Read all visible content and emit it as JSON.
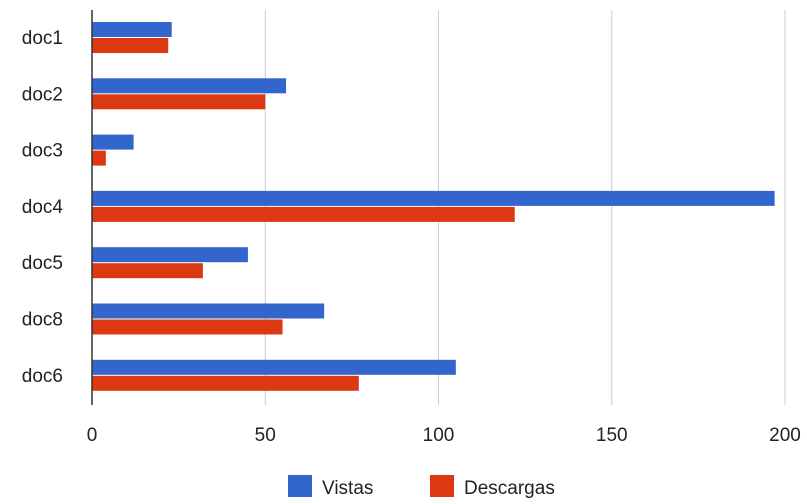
{
  "chart_data": {
    "type": "bar",
    "orientation": "horizontal",
    "categories": [
      "doc1",
      "doc2",
      "doc3",
      "doc4",
      "doc5",
      "doc8",
      "doc6"
    ],
    "series": [
      {
        "name": "Vistas",
        "color": "#3366cc",
        "values": [
          23,
          56,
          12,
          197,
          45,
          67,
          105
        ]
      },
      {
        "name": "Descargas",
        "color": "#dc3912",
        "values": [
          22,
          50,
          4,
          122,
          32,
          55,
          77
        ]
      }
    ],
    "xlim": [
      0,
      200
    ],
    "xticks": [
      0,
      50,
      100,
      150,
      200
    ],
    "grid": true,
    "legend_position": "bottom",
    "title": "",
    "xlabel": "",
    "ylabel": ""
  }
}
